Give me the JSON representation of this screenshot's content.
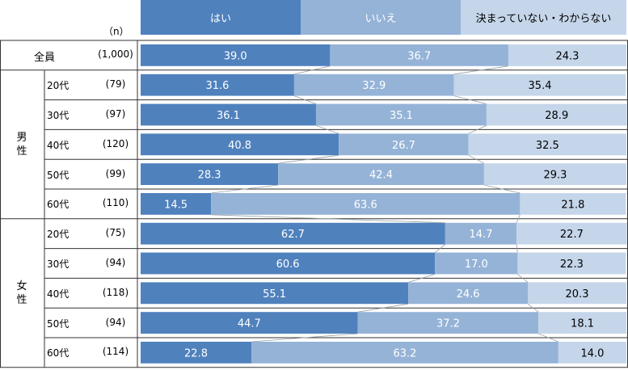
{
  "n_header": "（n）",
  "legend": [
    {
      "label": "はい",
      "color": "#4f81bd",
      "text_color": "#ffffff"
    },
    {
      "label": "いいえ",
      "color": "#95b3d7",
      "text_color": "#ffffff"
    },
    {
      "label": "決まっていない・わからない",
      "color": "#c5d6ea",
      "text_color": "#000000"
    }
  ],
  "groups": [
    {
      "label": "男性",
      "chars": [
        "男",
        "性"
      ]
    },
    {
      "label": "女性",
      "chars": [
        "女",
        "性"
      ]
    }
  ],
  "chart_data": {
    "type": "bar",
    "orientation": "horizontal",
    "stacked": true,
    "xlim": [
      0,
      100
    ],
    "categories": [
      {
        "group": "",
        "label": "全員",
        "n": "(1,000)"
      },
      {
        "group": "男性",
        "label": "20代",
        "n": "(79)"
      },
      {
        "group": "男性",
        "label": "30代",
        "n": "(97)"
      },
      {
        "group": "男性",
        "label": "40代",
        "n": "(120)"
      },
      {
        "group": "男性",
        "label": "50代",
        "n": "(99)"
      },
      {
        "group": "男性",
        "label": "60代",
        "n": "(110)"
      },
      {
        "group": "女性",
        "label": "20代",
        "n": "(75)"
      },
      {
        "group": "女性",
        "label": "30代",
        "n": "(94)"
      },
      {
        "group": "女性",
        "label": "40代",
        "n": "(118)"
      },
      {
        "group": "女性",
        "label": "50代",
        "n": "(94)"
      },
      {
        "group": "女性",
        "label": "60代",
        "n": "(114)"
      }
    ],
    "series": [
      {
        "name": "はい",
        "values": [
          "39.0",
          "31.6",
          "36.1",
          "40.8",
          "28.3",
          "14.5",
          "62.7",
          "60.6",
          "55.1",
          "44.7",
          "22.8"
        ]
      },
      {
        "name": "いいえ",
        "values": [
          "36.7",
          "32.9",
          "35.1",
          "26.7",
          "42.4",
          "63.6",
          "14.7",
          "17.0",
          "24.6",
          "37.2",
          "63.2"
        ]
      },
      {
        "name": "決まっていない・わからない",
        "values": [
          "24.3",
          "35.4",
          "28.9",
          "32.5",
          "29.3",
          "21.8",
          "22.7",
          "22.3",
          "20.3",
          "18.1",
          "14.0"
        ]
      }
    ]
  }
}
